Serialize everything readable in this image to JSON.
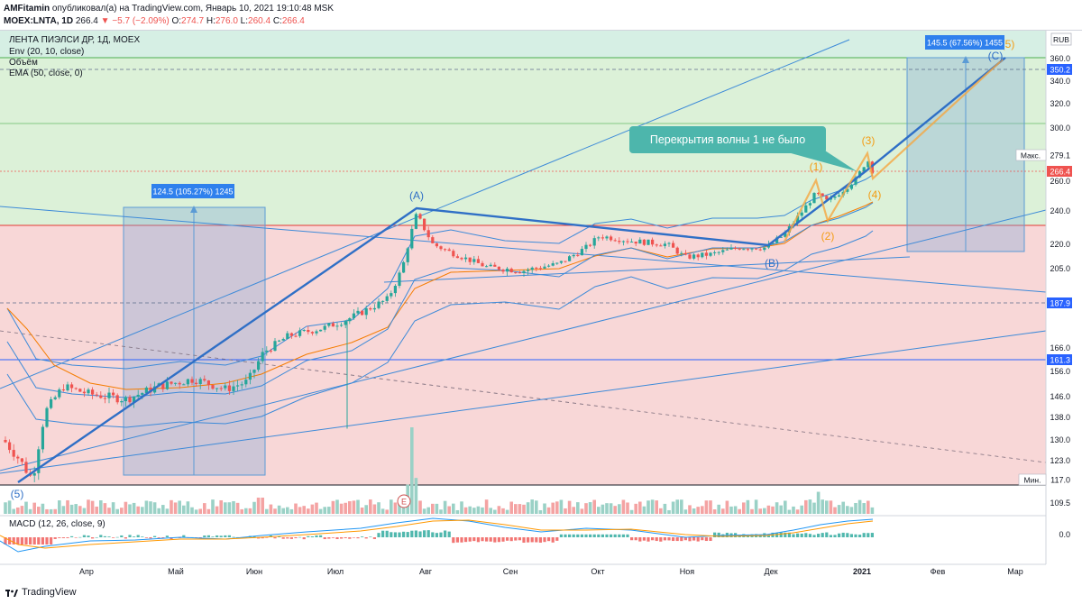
{
  "header": {
    "author": "AMFitamin",
    "published": "опубликовал(а) на TradingView.com, Январь 10, 2021 19:10:48 MSK",
    "symbol": "MOEX:LNTA, 1D",
    "last": "266.4",
    "change": "▼ −5.7 (−2.09%)",
    "o_label": "O:",
    "o": "274.7",
    "h_label": "H:",
    "h": "276.0",
    "l_label": "L:",
    "l": "260.4",
    "c_label": "C:",
    "c": "266.4"
  },
  "legend": {
    "title": "ЛЕНТА ПИЭЛСИ ДР, 1Д, MOEX",
    "env": "Env (20, 10, close)",
    "volume": "Объём",
    "ema": "EMA (50, close, 0)",
    "macd": "MACD (12, 26, close, 9)"
  },
  "colors": {
    "green_zone": "#d6f0dc",
    "red_zone": "#f8d4d6",
    "up": "#26a69a",
    "down": "#ef5350",
    "wave_blue": "#2962ff",
    "wave_orange": "#ff9800",
    "measure": "#5b9bd5"
  },
  "annotations": {
    "callout": "Перекрытия волны 1 не было",
    "measure_left": "124.5 (105.27%) 1245",
    "measure_right": "145.5 (67.56%) 1455",
    "wave_A": "(A)",
    "wave_B": "(B)",
    "wave_C": "(C)",
    "wave_5_left": "(5)",
    "wave_1": "(1)",
    "wave_2": "(2)",
    "wave_3": "(3)",
    "wave_4": "(4)",
    "wave_5_right": "(5)",
    "event_marker": "E"
  },
  "price_axis": {
    "currency": "RUB",
    "labels": [
      "360.0",
      "340.0",
      "320.0",
      "300.0",
      "260.0",
      "240.0",
      "220.0",
      "205.0",
      "166.0",
      "156.0",
      "146.0",
      "138.0",
      "130.0",
      "123.0",
      "109.5",
      "0.0"
    ],
    "max_label": "Макс.",
    "max_value": "279.1",
    "min_label": "Мин.",
    "min_value": "117.0",
    "last_price": "266.4",
    "level_350": "350.2",
    "level_188": "187.9",
    "level_161": "161.3"
  },
  "time_axis": [
    "Апр",
    "Май",
    "Июн",
    "Июл",
    "Авг",
    "Сен",
    "Окт",
    "Ноя",
    "Дек",
    "2021",
    "Фев",
    "Мар"
  ],
  "chart_data": {
    "type": "candlestick",
    "title": "ЛЕНТА ПИЭЛСИ ДР, 1Д, MOEX",
    "ylim": [
      113,
      372
    ],
    "key_points": {
      "start_low": 117.0,
      "wave_A_high": 241,
      "wave_B_low": 209,
      "max": 279.1,
      "last": 266.4,
      "target_C": 360
    },
    "close_path_monthly": [
      {
        "month": "Мар",
        "close": 130
      },
      {
        "month": "Апр",
        "close": 150
      },
      {
        "month": "Май",
        "close": 153
      },
      {
        "month": "Июн",
        "close": 164
      },
      {
        "month": "Июл",
        "close": 176
      },
      {
        "month": "Авг",
        "close": 212
      },
      {
        "month": "Сен",
        "close": 206
      },
      {
        "month": "Окт",
        "close": 224
      },
      {
        "month": "Ноя",
        "close": 215
      },
      {
        "month": "Дек",
        "close": 252
      },
      {
        "month": "2021",
        "close": 266.4
      }
    ]
  },
  "footer": {
    "brand": "TradingView"
  }
}
